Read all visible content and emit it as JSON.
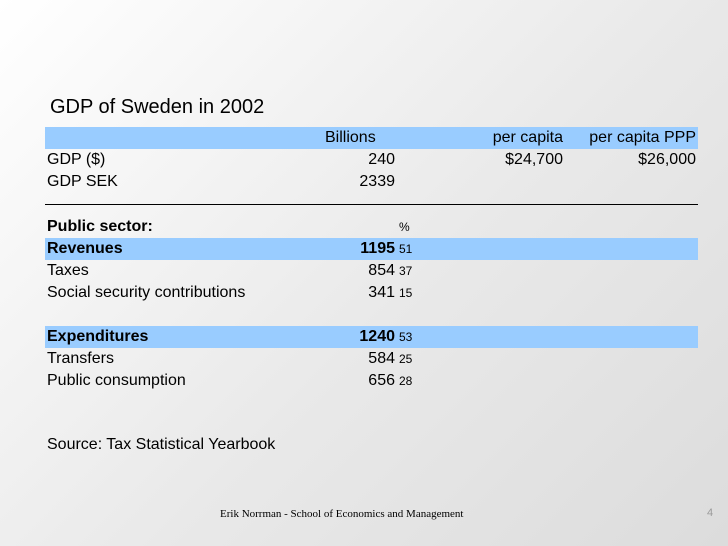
{
  "title": "GDP of Sweden in 2002",
  "table": {
    "headers": {
      "billions": "Billions",
      "per_capita": "per capita",
      "per_capita_ppp": "per capita PPP"
    },
    "gdp_usd": {
      "label": "GDP ($)",
      "billions": "240",
      "per_capita": "$24,700",
      "per_capita_ppp": "$26,000"
    },
    "gdp_sek": {
      "label": "GDP SEK",
      "billions": "2339"
    },
    "public_sector": {
      "label": "Public sector:",
      "pct_header": "%"
    },
    "revenues": {
      "label": "Revenues",
      "value": "1195",
      "pct": "51"
    },
    "taxes": {
      "label": "Taxes",
      "value": "854",
      "pct": "37"
    },
    "social_security": {
      "label": "Social security contributions",
      "value": "341",
      "pct": "15"
    },
    "expenditures": {
      "label": "Expenditures",
      "value": "1240",
      "pct": "53"
    },
    "transfers": {
      "label": "Transfers",
      "value": "584",
      "pct": "25"
    },
    "public_consumption": {
      "label": "Public consumption",
      "value": "656",
      "pct": "28"
    }
  },
  "source": "Source: Tax Statistical Yearbook",
  "footer": "Erik Norrman - School of Economics and Management",
  "page_number": "4",
  "colors": {
    "highlight_row": "#99ccff"
  }
}
